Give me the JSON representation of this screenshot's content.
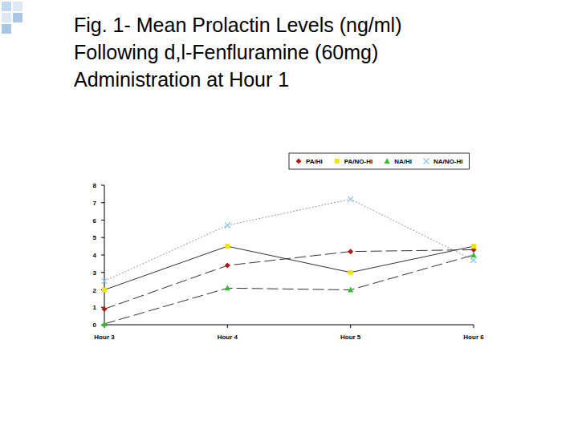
{
  "chart_data": {
    "type": "line",
    "title": "Fig. 1- Mean Prolactin Levels (ng/ml)\nFollowing d,l-Fenfluramine (60mg)\nAdministration at Hour 1",
    "categories": [
      "Hour 3",
      "Hour 4",
      "Hour 5",
      "Hour 6"
    ],
    "series": [
      {
        "name": "PA/HI",
        "color": "#b01818",
        "marker": "diamond",
        "line_style": "dashed",
        "values": [
          0.9,
          3.4,
          4.2,
          4.3
        ]
      },
      {
        "name": "PA/NO-HI",
        "color": "#f2e600",
        "marker": "square",
        "line_style": "solid",
        "values": [
          2.0,
          4.5,
          3.0,
          4.5
        ]
      },
      {
        "name": "NA/HI",
        "color": "#2ebd2e",
        "marker": "triangle",
        "line_style": "dashed",
        "values": [
          0.05,
          2.1,
          2.0,
          4.0
        ]
      },
      {
        "name": "NA/NO-HI",
        "color": "#8ec8f0",
        "marker": "x",
        "line_style": "dotted",
        "values": [
          2.5,
          5.7,
          7.2,
          3.7
        ]
      }
    ],
    "ylim": [
      0,
      8
    ],
    "yticks": [
      0,
      1,
      2,
      3,
      4,
      5,
      6,
      7,
      8
    ],
    "grid": false,
    "legend": "top"
  }
}
